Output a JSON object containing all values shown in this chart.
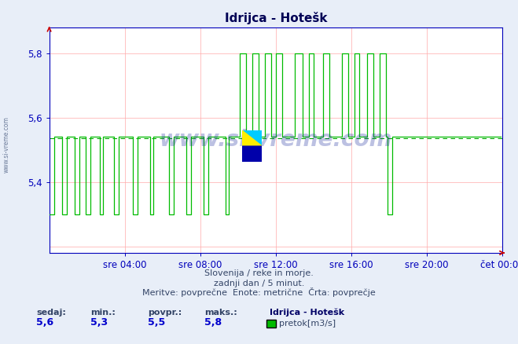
{
  "title": "Idrijca - Hotešk",
  "bg_color": "#e8eef8",
  "plot_bg_color": "#ffffff",
  "line_color": "#00bb00",
  "avg_line_color": "#00aa00",
  "grid_color": "#ffaaaa",
  "axis_color": "#0000bb",
  "title_color": "#000055",
  "spine_color": "#0000bb",
  "arrow_color": "#cc0000",
  "ymin": 5.18,
  "ymax": 5.88,
  "yticks": [
    5.4,
    5.6,
    5.8
  ],
  "ytick_labels": [
    "5,4",
    "5,6",
    "5,8"
  ],
  "avg_value": 5.535,
  "xtick_hours": [
    4,
    8,
    12,
    16,
    20,
    24
  ],
  "xtick_labels": [
    "sre 04:00",
    "sre 08:00",
    "sre 12:00",
    "sre 16:00",
    "sre 20:00",
    "čet 00:00"
  ],
  "footnote1": "Slovenija / reke in morje.",
  "footnote2": "zadnji dan / 5 minut.",
  "footnote3": "Meritve: povprečne  Enote: metrične  Črta: povprečje",
  "legend_station": "Idrijca - Hotešk",
  "legend_label": "pretok[m3/s]",
  "legend_color": "#00bb00",
  "stat_labels": [
    "sedaj:",
    "min.:",
    "povpr.:",
    "maks.:"
  ],
  "stat_values": [
    "5,6",
    "5,3",
    "5,5",
    "5,8"
  ],
  "watermark": "www.si-vreme.com",
  "watermark_color": "#112299",
  "left_label": "www.si-vreme.com"
}
